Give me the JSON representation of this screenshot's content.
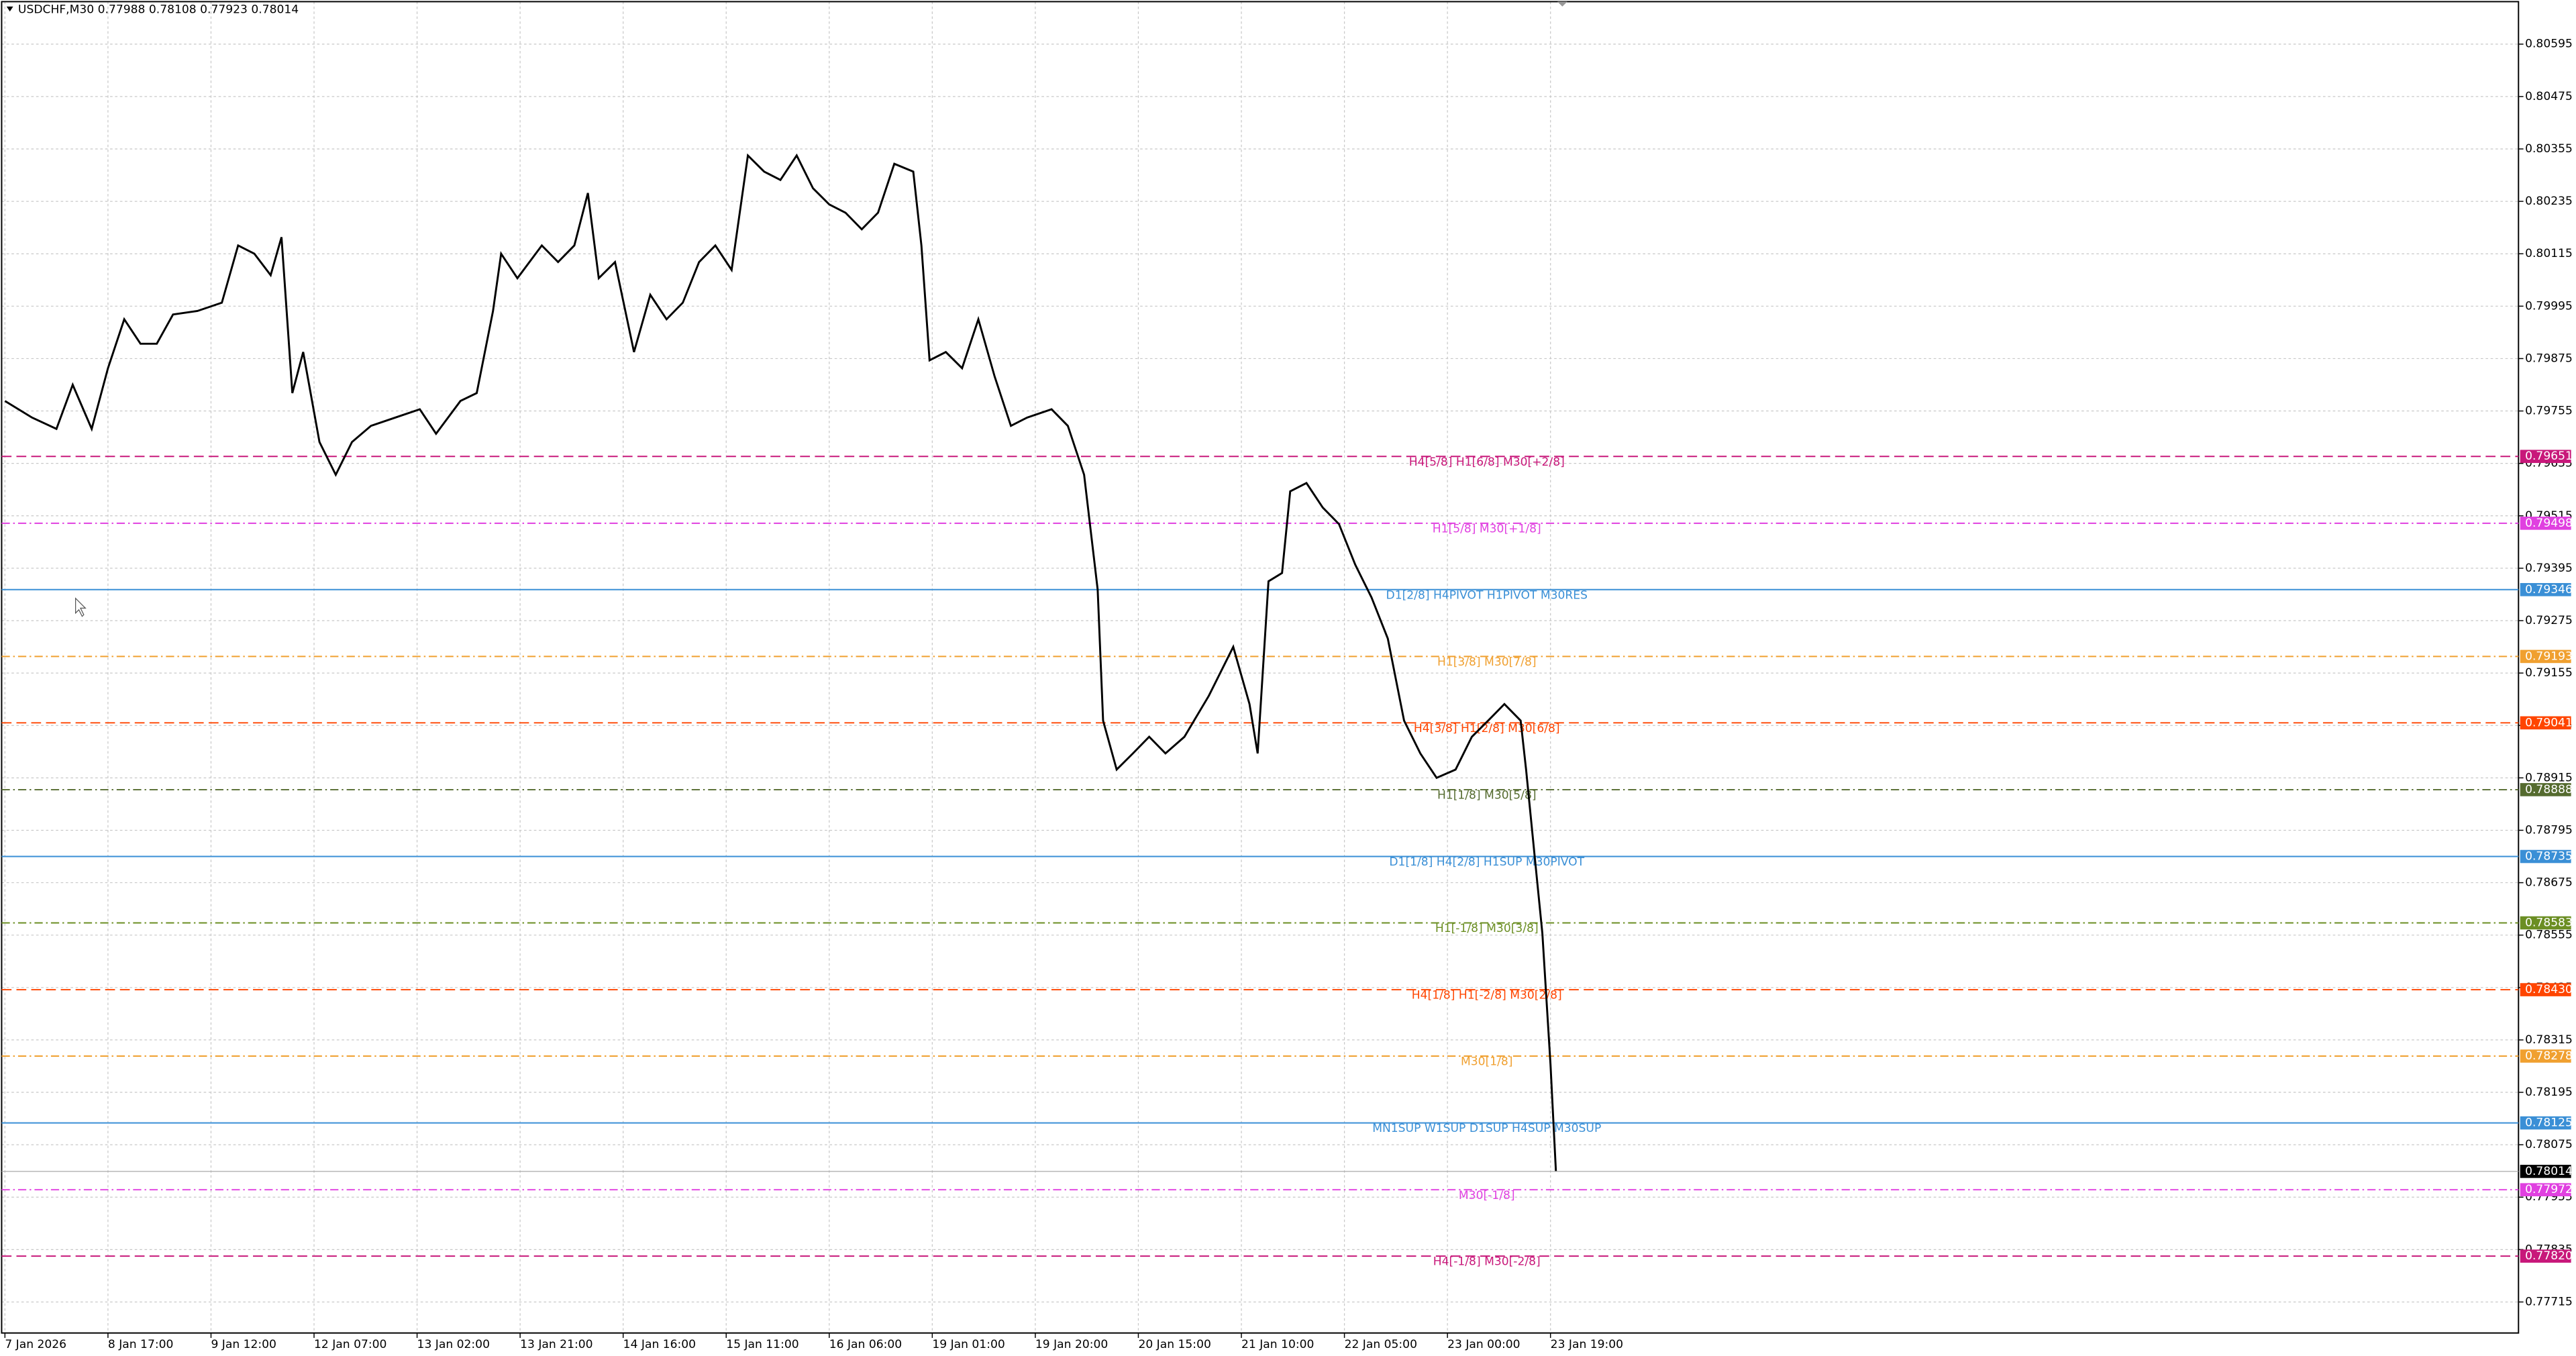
{
  "chart_data": {
    "type": "line",
    "title": "USDCHF,M30  0.77988 0.78108 0.77923 0.78014",
    "xlim": [
      0,
      927
    ],
    "xticks": [
      {
        "value": 0,
        "label": "7 Jan 2026"
      },
      {
        "value": 38,
        "label": "8 Jan 17:00"
      },
      {
        "value": 76,
        "label": "9 Jan 12:00"
      },
      {
        "value": 114,
        "label": "12 Jan 07:00"
      },
      {
        "value": 152,
        "label": "13 Jan 02:00"
      },
      {
        "value": 190,
        "label": "13 Jan 21:00"
      },
      {
        "value": 228,
        "label": "14 Jan 16:00"
      },
      {
        "value": 266,
        "label": "15 Jan 11:00"
      },
      {
        "value": 304,
        "label": "16 Jan 06:00"
      },
      {
        "value": 342,
        "label": "19 Jan 01:00"
      },
      {
        "value": 380,
        "label": "19 Jan 20:00"
      },
      {
        "value": 418,
        "label": "20 Jan 15:00"
      },
      {
        "value": 456,
        "label": "21 Jan 10:00"
      },
      {
        "value": 494,
        "label": "22 Jan 05:00"
      },
      {
        "value": 532,
        "label": "23 Jan 00:00"
      },
      {
        "value": 570,
        "label": "23 Jan 19:00"
      }
    ],
    "ylim": [
      0.77644,
      0.80696
    ],
    "yticks": [
      0.80595,
      0.80475,
      0.80355,
      0.80235,
      0.80115,
      0.79995,
      0.79875,
      0.79755,
      0.79635,
      0.79515,
      0.79395,
      0.79275,
      0.79155,
      0.79035,
      0.78915,
      0.78795,
      0.78675,
      0.78555,
      0.78435,
      0.78315,
      0.78195,
      0.78075,
      0.77955,
      0.77835,
      0.77715
    ],
    "grid": true,
    "series": [
      {
        "name": "USDCHF",
        "color": "#000000",
        "x": [
          0,
          10,
          19,
          25,
          32,
          38,
          44,
          50,
          56,
          62,
          71,
          80,
          86,
          92,
          98,
          102,
          106,
          110,
          116,
          122,
          128,
          135,
          144,
          153,
          159,
          168,
          174,
          180,
          183,
          189,
          198,
          204,
          210,
          215,
          219,
          225,
          232,
          238,
          244,
          250,
          256,
          262,
          268,
          274,
          280,
          286,
          292,
          298,
          304,
          310,
          316,
          322,
          328,
          335,
          338,
          341,
          347,
          353,
          359,
          365,
          371,
          377,
          386,
          392,
          398,
          403,
          405,
          410,
          416,
          422,
          428,
          435,
          444,
          453,
          459,
          462,
          466,
          471,
          474,
          480,
          486,
          492,
          498,
          504,
          510,
          516,
          522,
          528,
          535,
          541,
          547,
          553,
          559,
          561,
          564,
          567,
          570,
          572
        ],
        "values": [
          0.79778,
          0.7974,
          0.79714,
          0.79815,
          0.79714,
          0.79853,
          0.79965,
          0.79909,
          0.79909,
          0.79976,
          0.79984,
          0.80003,
          0.80134,
          0.80115,
          0.80066,
          0.80153,
          0.79796,
          0.7989,
          0.79684,
          0.79609,
          0.79684,
          0.79721,
          0.7974,
          0.79759,
          0.79703,
          0.79778,
          0.79796,
          0.79984,
          0.80115,
          0.80059,
          0.80134,
          0.80096,
          0.80134,
          0.80254,
          0.80059,
          0.80096,
          0.7989,
          0.80021,
          0.79965,
          0.80003,
          0.80096,
          0.80134,
          0.80078,
          0.8034,
          0.80303,
          0.80284,
          0.8034,
          0.80265,
          0.80228,
          0.80209,
          0.80171,
          0.80209,
          0.80321,
          0.80303,
          0.80134,
          0.79871,
          0.7989,
          0.79853,
          0.79965,
          0.79834,
          0.79721,
          0.7974,
          0.79759,
          0.79721,
          0.79609,
          0.79346,
          0.79046,
          0.78934,
          0.78971,
          0.79009,
          0.78971,
          0.79009,
          0.79103,
          0.79215,
          0.79084,
          0.78971,
          0.79365,
          0.79384,
          0.79571,
          0.7959,
          0.79534,
          0.79496,
          0.79403,
          0.79328,
          0.79234,
          0.79046,
          0.78971,
          0.78915,
          0.78934,
          0.79009,
          0.79046,
          0.79084,
          0.79046,
          0.78934,
          0.78746,
          0.78559,
          0.78259,
          0.78014
        ]
      }
    ],
    "current_price": 0.78014,
    "levels": [
      {
        "name": "H4[5/8] H1[6/8] M30[+2/8]",
        "value": 0.79651,
        "color": "#c8187a",
        "style": "dash"
      },
      {
        "name": "H1[5/8] M30[+1/8]",
        "value": 0.79498,
        "color": "#e040e0",
        "style": "dashdot"
      },
      {
        "name": "D1[2/8] H4PIVOT H1PIVOT M30RES",
        "value": 0.79346,
        "color": "#3a8fd6",
        "style": "solid"
      },
      {
        "name": "H1[3/8] M30[7/8]",
        "value": 0.79193,
        "color": "#f0a030",
        "style": "dashdot"
      },
      {
        "name": "H4[3/8] H1[2/8] M30[6/8]",
        "value": 0.79041,
        "color": "#ff4500",
        "style": "dash"
      },
      {
        "name": "H1[1/8] M30[5/8]",
        "value": 0.78888,
        "color": "#556b2f",
        "style": "dashdot"
      },
      {
        "name": "D1[1/8] H4[2/8] H1SUP M30PIVOT",
        "value": 0.78735,
        "color": "#3a8fd6",
        "style": "solid"
      },
      {
        "name": "H1[-1/8] M30[3/8]",
        "value": 0.78583,
        "color": "#6b8e23",
        "style": "dashdot"
      },
      {
        "name": "H4[1/8] H1[-2/8] M30[2/8]",
        "value": 0.7843,
        "value_label": "0.78430",
        "color": "#ff4500",
        "style": "dash"
      },
      {
        "name": "M30[1/8]",
        "value": 0.78278,
        "color": "#f0a030",
        "style": "dashdot"
      },
      {
        "name": "MN1SUP W1SUP D1SUP H4SUP M30SUP",
        "value": 0.78125,
        "color": "#3a8fd6",
        "style": "solid"
      },
      {
        "name": "M30[-1/8]",
        "value": 0.77972,
        "color": "#e040e0",
        "style": "dashdot"
      },
      {
        "name": "H4[-1/8] M30[-2/8]",
        "value": 0.7782,
        "value_label": "0.77820",
        "color": "#c8187a",
        "style": "dash"
      }
    ]
  }
}
